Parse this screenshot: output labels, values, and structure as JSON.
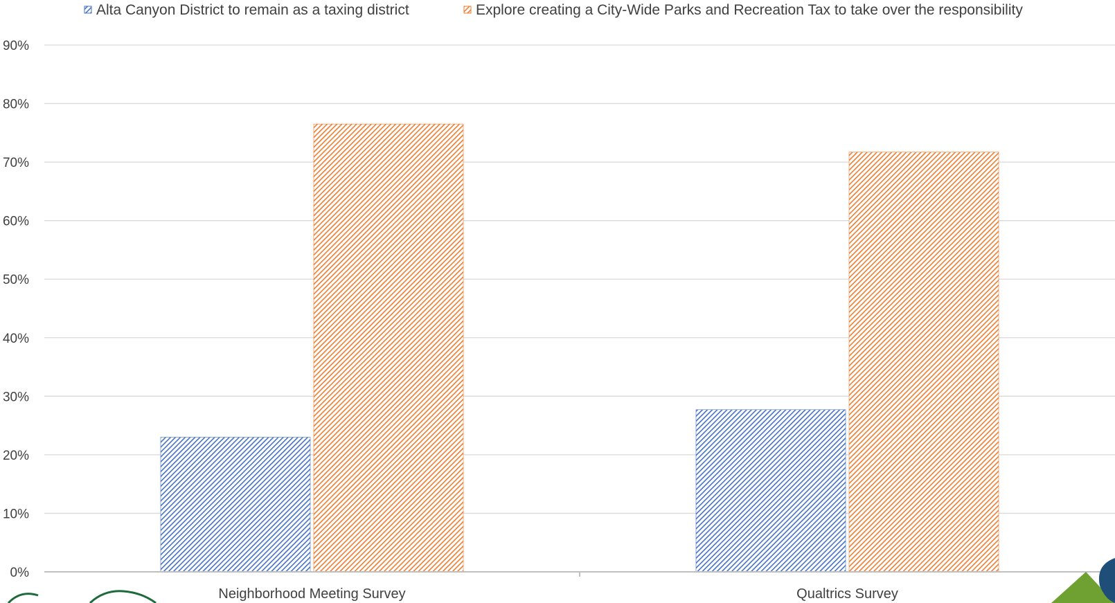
{
  "chart_data": {
    "type": "bar",
    "categories": [
      "Neighborhood Meeting Survey",
      "Qualtrics Survey"
    ],
    "series": [
      {
        "name": "Alta Canyon District to remain as a taxing district",
        "values": [
          0.23,
          0.277
        ],
        "color": "#4472C4"
      },
      {
        "name": "Explore creating a City-Wide Parks and Recreation Tax to take over the responsibility",
        "values": [
          0.765,
          0.717
        ],
        "color": "#ED7D31"
      }
    ],
    "ylim": [
      0,
      0.9
    ],
    "yticks": [
      "0%",
      "10%",
      "20%",
      "30%",
      "40%",
      "50%",
      "60%",
      "70%",
      "80%",
      "90%"
    ],
    "grid": true,
    "legend_position": "top",
    "bar_fill": "diagonal-hatch"
  }
}
